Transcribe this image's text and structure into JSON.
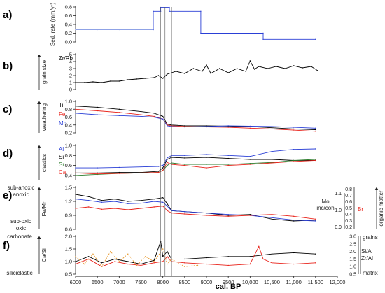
{
  "x_axis": {
    "label": "cal. BP",
    "range": [
      6000,
      12000
    ],
    "ticks": [
      "6000",
      "6500",
      "7000",
      "7500",
      "8000",
      "8500",
      "9000",
      "9500",
      "10,000",
      "10,500",
      "11,000",
      "11,500",
      "12,000"
    ]
  },
  "event_markers": [
    7950,
    8050,
    8200
  ],
  "colors": {
    "black": "#000000",
    "red": "#e8221a",
    "blue": "#2a3fd6",
    "green": "#2c7d2c",
    "orange": "#e89a2e",
    "lightblue": "#8fa2e6",
    "axis": "#222222"
  },
  "chart_data": [
    {
      "panel": "a)",
      "type": "line",
      "ylabel": "Sed. rate (mm/yr)",
      "ylim": [
        0,
        0.8
      ],
      "yticks": [
        "0.0",
        "0.2",
        "0.4",
        "0.6",
        "0.8"
      ],
      "series": [
        {
          "color": "lightblue",
          "x": [
            6000,
            6500,
            7000,
            7500,
            7780
          ],
          "y": [
            0.28,
            0.28,
            0.28,
            0.28,
            0.28
          ]
        },
        {
          "color": "blue",
          "x": [
            7780,
            7780,
            7950,
            7950,
            8150,
            8150,
            8870,
            8870,
            10300,
            10300,
            11500
          ],
          "y": [
            0.28,
            0.7,
            0.7,
            0.79,
            0.79,
            0.7,
            0.7,
            0.2,
            0.2,
            0.06,
            0.06
          ]
        }
      ]
    },
    {
      "panel": "b)",
      "type": "line",
      "ylabel": "grain size",
      "ylim": [
        0,
        5
      ],
      "yticks": [
        "0",
        "1",
        "2",
        "3",
        "4",
        "5"
      ],
      "series_labels": [
        "Zr/Rb"
      ],
      "series": [
        {
          "name": "Zr/Rb",
          "color": "black",
          "x": [
            6000,
            6200,
            6400,
            6600,
            6800,
            7000,
            7200,
            7400,
            7600,
            7800,
            7900,
            8000,
            8100,
            8200,
            8300,
            8500,
            8700,
            8900,
            9000,
            9100,
            9300,
            9500,
            9700,
            9900,
            10000,
            10100,
            10200,
            10400,
            10600,
            10800,
            11000,
            11200,
            11400,
            11550
          ],
          "y": [
            1.0,
            1.0,
            1.1,
            1.0,
            1.2,
            1.2,
            1.4,
            1.5,
            1.6,
            1.7,
            2.0,
            1.6,
            2.2,
            2.4,
            2.6,
            2.3,
            3.0,
            2.6,
            3.5,
            2.3,
            3.0,
            2.4,
            3.0,
            2.6,
            4.1,
            2.9,
            3.3,
            3.0,
            3.3,
            3.0,
            3.4,
            3.1,
            3.3,
            2.7
          ]
        }
      ]
    },
    {
      "panel": "c)",
      "type": "line",
      "ylabel": "weathering",
      "ylim": [
        0.2,
        1.0
      ],
      "yticks": [
        "0.2",
        "0.4",
        "0.6",
        "0.8",
        "1.0"
      ],
      "series_labels": [
        "Ti",
        "Fe",
        "Mn"
      ],
      "series": [
        {
          "name": "Ti",
          "color": "black",
          "x": [
            6000,
            6500,
            7000,
            7500,
            7800,
            8000,
            8100,
            8200,
            8500,
            9000,
            9500,
            10000,
            10500,
            11000,
            11500
          ],
          "y": [
            0.88,
            0.85,
            0.8,
            0.74,
            0.7,
            0.62,
            0.42,
            0.4,
            0.38,
            0.38,
            0.37,
            0.36,
            0.33,
            0.3,
            0.28
          ]
        },
        {
          "name": "Fe",
          "color": "red",
          "x": [
            6000,
            6500,
            7000,
            7500,
            7800,
            8000,
            8100,
            8200,
            8500,
            9000,
            9500,
            10000,
            10500,
            11000,
            11500
          ],
          "y": [
            0.8,
            0.76,
            0.72,
            0.66,
            0.62,
            0.55,
            0.4,
            0.38,
            0.36,
            0.35,
            0.34,
            0.32,
            0.3,
            0.27,
            0.24
          ]
        },
        {
          "name": "Mn",
          "color": "blue",
          "x": [
            6000,
            6500,
            7000,
            7500,
            7800,
            8000,
            8100,
            8200,
            8500,
            9000,
            9500,
            10000,
            10500,
            11000,
            11500
          ],
          "y": [
            0.7,
            0.66,
            0.64,
            0.62,
            0.6,
            0.55,
            0.38,
            0.36,
            0.35,
            0.36,
            0.38,
            0.37,
            0.36,
            0.34,
            0.32
          ]
        }
      ]
    },
    {
      "panel": "d)",
      "type": "line",
      "ylabel": "clastics",
      "ylim": [
        0.3,
        1.0
      ],
      "yticks": [
        "0.4",
        "0.6",
        "0.8",
        "1.0"
      ],
      "series_labels": [
        "Al",
        "Si",
        "Sr",
        "Ca"
      ],
      "series": [
        {
          "name": "Al",
          "color": "blue",
          "x": [
            6000,
            6500,
            7000,
            7500,
            7900,
            8000,
            8100,
            8200,
            8500,
            9000,
            9500,
            10000,
            10500,
            11000,
            11500
          ],
          "y": [
            0.55,
            0.55,
            0.56,
            0.57,
            0.58,
            0.6,
            0.75,
            0.8,
            0.8,
            0.82,
            0.8,
            0.78,
            0.88,
            0.92,
            0.93
          ]
        },
        {
          "name": "Si",
          "color": "black",
          "x": [
            6000,
            6500,
            7000,
            7500,
            7900,
            8000,
            8100,
            8200,
            8500,
            9000,
            9500,
            10000,
            10500,
            11000,
            11500
          ],
          "y": [
            0.45,
            0.45,
            0.46,
            0.46,
            0.48,
            0.55,
            0.72,
            0.76,
            0.75,
            0.76,
            0.74,
            0.72,
            0.72,
            0.7,
            0.7
          ]
        },
        {
          "name": "Sr",
          "color": "green",
          "x": [
            6000,
            6500,
            7000,
            7500,
            7900,
            8000,
            8100,
            8200,
            8500,
            9000,
            9500,
            10000,
            10500,
            11000,
            11500
          ],
          "y": [
            0.4,
            0.42,
            0.44,
            0.45,
            0.46,
            0.5,
            0.6,
            0.65,
            0.62,
            0.62,
            0.62,
            0.64,
            0.66,
            0.7,
            0.72
          ]
        },
        {
          "name": "Ca",
          "color": "red",
          "x": [
            6000,
            6500,
            7000,
            7500,
            7900,
            8000,
            8100,
            8200,
            8500,
            9000,
            9500,
            10000,
            10500,
            11000,
            11500
          ],
          "y": [
            0.45,
            0.43,
            0.44,
            0.45,
            0.46,
            0.5,
            0.66,
            0.62,
            0.6,
            0.55,
            0.6,
            0.62,
            0.65,
            0.68,
            0.7
          ]
        }
      ]
    },
    {
      "panel": "e)",
      "type": "line",
      "ylabel": "Fe/Mn",
      "ylim": [
        0.6,
        1.5
      ],
      "yticks": [
        "0.6",
        "0.9",
        "1.2",
        "1.5"
      ],
      "left_labels": [
        "sub-anoxic",
        "anoxic",
        "sub-oxic",
        "oxic"
      ],
      "right_label_1": "Mo inc/coh",
      "right_ticks_1": [
        "0.9",
        "1.0",
        "1.1"
      ],
      "right_label_2": "Br",
      "right_ticks_2": [
        "0.2",
        "0.3",
        "0.4",
        "0.5",
        "0.6",
        "0.7",
        "0.8"
      ],
      "right_axis_title": "organic matter",
      "series": [
        {
          "name": "Fe/Mn",
          "color": "black",
          "x": [
            6000,
            6300,
            6600,
            6900,
            7200,
            7500,
            7800,
            8000,
            8100,
            8200,
            8500,
            9000,
            9500,
            10000,
            10500,
            11000,
            11500
          ],
          "y": [
            1.35,
            1.3,
            1.22,
            1.25,
            1.2,
            1.22,
            1.25,
            1.28,
            1.15,
            1.0,
            0.98,
            0.95,
            0.9,
            0.92,
            0.82,
            0.78,
            0.8
          ]
        },
        {
          "name": "Mo inc/coh",
          "color": "blue",
          "x": [
            6000,
            6300,
            6600,
            6900,
            7200,
            7500,
            7800,
            8000,
            8100,
            8200,
            8500,
            9000,
            9500,
            10000,
            10500,
            11000,
            11500
          ],
          "y": [
            1.25,
            1.22,
            1.18,
            1.2,
            1.15,
            1.16,
            1.2,
            1.18,
            1.1,
            1.0,
            0.98,
            0.95,
            0.92,
            0.9,
            0.85,
            0.8,
            0.78
          ]
        },
        {
          "name": "Br",
          "color": "red",
          "x": [
            6000,
            6300,
            6600,
            6900,
            7200,
            7500,
            7800,
            8000,
            8100,
            8200,
            8500,
            9000,
            9500,
            10000,
            10500,
            11000,
            11500
          ],
          "y": [
            1.05,
            1.08,
            1.03,
            1.05,
            1.02,
            1.05,
            1.08,
            1.1,
            1.0,
            0.95,
            0.93,
            0.9,
            0.88,
            0.9,
            0.92,
            0.88,
            0.82
          ]
        }
      ]
    },
    {
      "panel": "f)",
      "type": "line",
      "ylabel": "Ca/Si",
      "ylim": [
        0.5,
        2.0
      ],
      "yticks": [
        "0.5",
        "1.0",
        "1.5",
        "2.0"
      ],
      "left_labels": [
        "carbonate",
        "siliciclastic"
      ],
      "right_axis_labels": [
        "grains",
        "Si/Al",
        "Zr/Al",
        "matrix"
      ],
      "right_ticks": [
        "0.5",
        "1.0",
        "1.5",
        "2.0",
        "2.5",
        "3.0"
      ],
      "series": [
        {
          "name": "Ca/Si",
          "color": "black",
          "x": [
            6000,
            6300,
            6600,
            6900,
            7200,
            7500,
            7800,
            7950,
            8000,
            8100,
            8200,
            8500,
            9000,
            9500,
            10000,
            10500,
            11000,
            11500
          ],
          "y": [
            1.0,
            1.2,
            0.95,
            1.1,
            1.0,
            0.9,
            1.05,
            1.8,
            1.2,
            1.4,
            1.1,
            1.1,
            1.15,
            1.2,
            1.2,
            1.3,
            1.35,
            1.3
          ]
        },
        {
          "name": "Si/Al",
          "color": "red",
          "x": [
            6000,
            6300,
            6600,
            6900,
            7200,
            7500,
            7800,
            8000,
            8100,
            8200,
            8500,
            9000,
            9500,
            10000,
            10200,
            10300,
            10500,
            11000,
            11500
          ],
          "y": [
            0.9,
            1.1,
            0.8,
            1.0,
            0.9,
            0.85,
            0.95,
            1.0,
            1.2,
            1.0,
            0.95,
            0.9,
            0.85,
            0.9,
            1.6,
            1.1,
            0.95,
            0.9,
            0.95
          ]
        },
        {
          "name": "Zr/Al",
          "color": "orange",
          "x": [
            6000,
            6200,
            6400,
            6600,
            6800,
            7000,
            7200,
            7400,
            7600,
            7800,
            8000,
            8100,
            8200,
            8500,
            8800
          ],
          "y": [
            1.2,
            0.9,
            1.3,
            0.8,
            1.4,
            1.0,
            1.3,
            0.85,
            1.2,
            1.0,
            1.5,
            0.9,
            1.1,
            0.8,
            0.85
          ]
        }
      ]
    }
  ]
}
